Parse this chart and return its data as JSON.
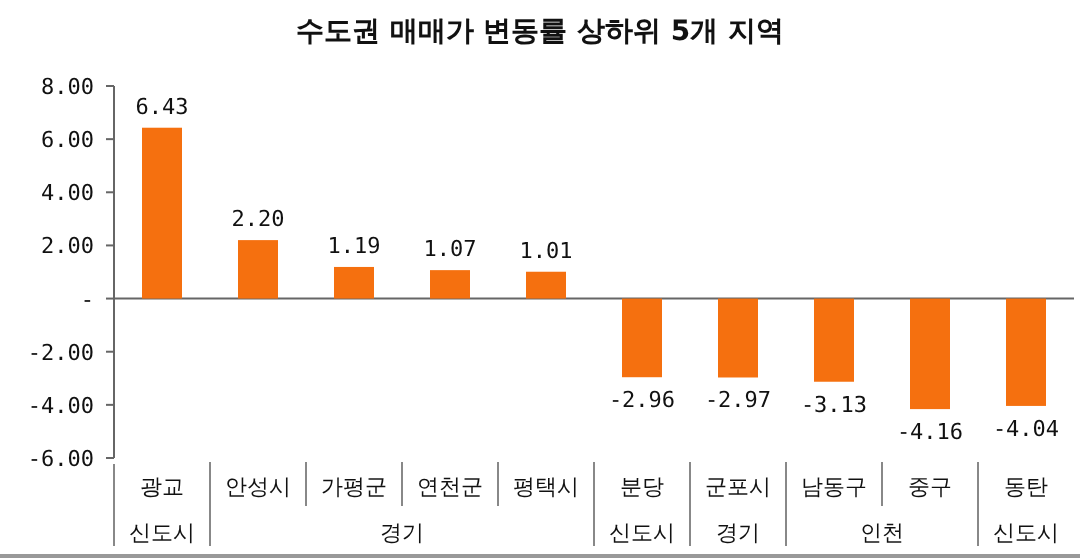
{
  "chart_data": {
    "type": "bar",
    "title": "수도권 매매가 변동률 상하위 5개 지역",
    "categories": [
      "광교",
      "안성시",
      "가평군",
      "연천군",
      "평택시",
      "분당",
      "군포시",
      "남동구",
      "중구",
      "동탄"
    ],
    "values": [
      6.43,
      2.2,
      1.19,
      1.07,
      1.01,
      -2.96,
      -2.97,
      -3.13,
      -4.16,
      -4.04
    ],
    "value_labels": [
      "6.43",
      "2.20",
      "1.19",
      "1.07",
      "1.01",
      "-2.96",
      "-2.97",
      "-3.13",
      "-4.16",
      "-4.04"
    ],
    "color": "#f5700f",
    "ylim": [
      -6,
      8
    ],
    "yticks": [
      {
        "value": 8,
        "label": "8.00"
      },
      {
        "value": 6,
        "label": "6.00"
      },
      {
        "value": 4,
        "label": "4.00"
      },
      {
        "value": 2,
        "label": "2.00"
      },
      {
        "value": 0,
        "label": "-"
      },
      {
        "value": -2,
        "label": "-2.00"
      },
      {
        "value": -4,
        "label": "-4.00"
      },
      {
        "value": -6,
        "label": "-6.00"
      }
    ],
    "annotations": [
      "신도시",
      "경기",
      "신도시",
      "경기",
      "인천",
      "신도시"
    ]
  }
}
